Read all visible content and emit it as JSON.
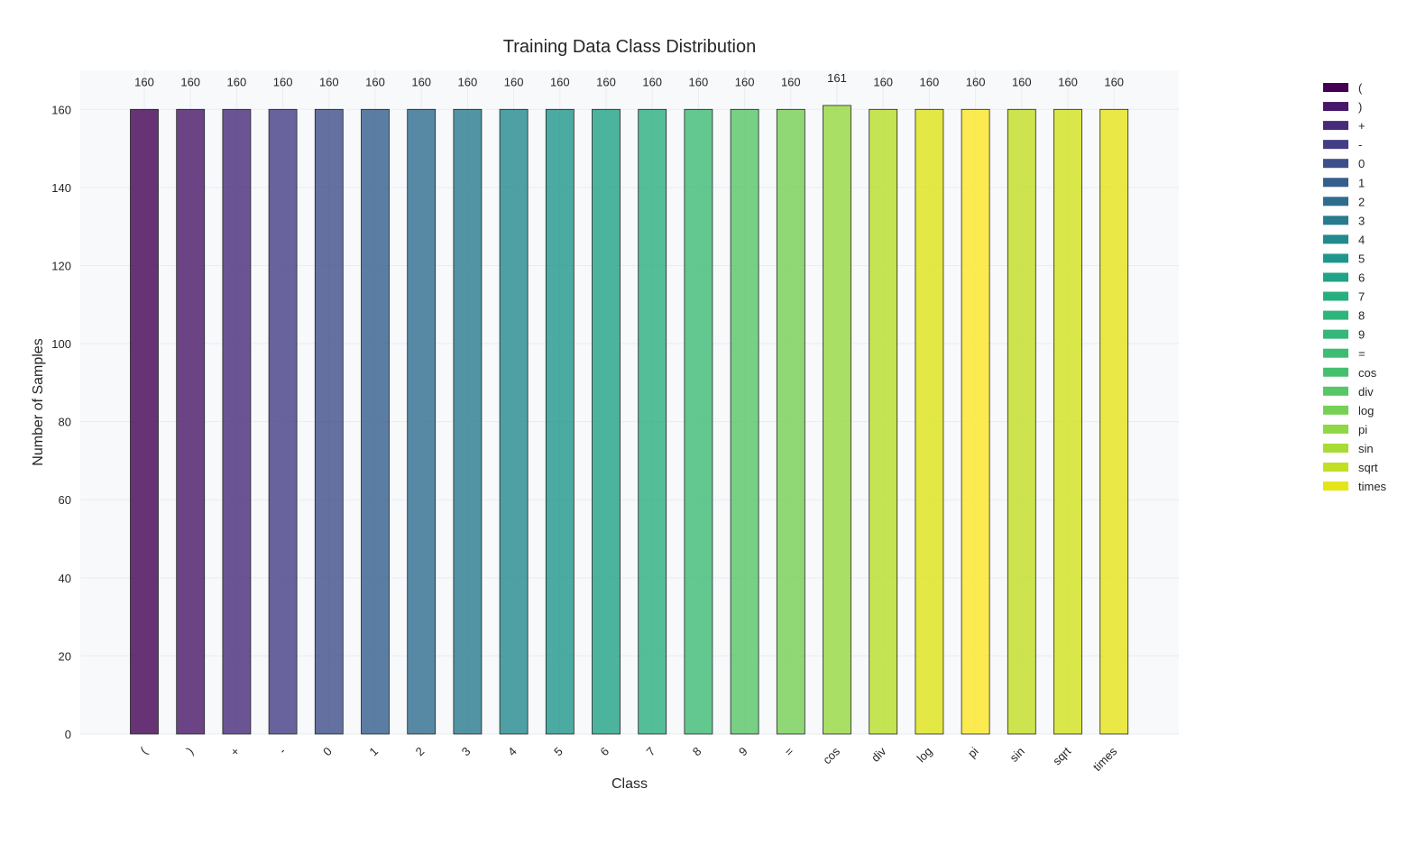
{
  "chart_data": {
    "type": "bar",
    "title": "Training Data Class Distribution",
    "xlabel": "Class",
    "ylabel": "Number of Samples",
    "categories": [
      "(",
      ")",
      "+",
      "-",
      "0",
      "1",
      "2",
      "3",
      "4",
      "5",
      "6",
      "7",
      "8",
      "9",
      "=",
      "cos",
      "div",
      "log",
      "pi",
      "sin",
      "sqrt",
      "times"
    ],
    "values": [
      160,
      160,
      160,
      160,
      160,
      160,
      160,
      160,
      160,
      160,
      160,
      160,
      160,
      160,
      160,
      161,
      160,
      160,
      160,
      160,
      160,
      160
    ],
    "value_labels": [
      "160",
      "160",
      "160",
      "160",
      "160",
      "160",
      "160",
      "160",
      "160",
      "160",
      "160",
      "160",
      "160",
      "160",
      "160",
      "161",
      "160",
      "160",
      "160",
      "160",
      "160",
      "160"
    ],
    "ylim": [
      0,
      170
    ],
    "yticks": [
      0,
      20,
      40,
      60,
      80,
      100,
      120,
      140,
      160
    ],
    "colors": [
      "#440154",
      "#481769",
      "#472a7a",
      "#433d84",
      "#3d4e8a",
      "#355e8d",
      "#2e6d8e",
      "#297b8e",
      "#23898e",
      "#1f968b",
      "#20a386",
      "#29af7f",
      "#3dbc74",
      "#56c667",
      "#75d054",
      "#95d840",
      "#b8de29",
      "#dde318",
      "#fde725",
      "#c2df23",
      "#d2e21b",
      "#e5e419"
    ],
    "legend_colors": [
      "#440154",
      "#481769",
      "#472a7a",
      "#433d84",
      "#3d4e8a",
      "#355e8d",
      "#2e6d8e",
      "#297b8e",
      "#23898e",
      "#1f968b",
      "#20a386",
      "#29af7f",
      "#2fb47c",
      "#35b779",
      "#3dbc74",
      "#46c06f",
      "#56c667",
      "#75d054",
      "#8fd744",
      "#a8db34",
      "#c2df23",
      "#e5e419"
    ],
    "bar_opacity": 0.8,
    "grid": true,
    "legend_position": "outside-right",
    "plot_background": "#f7f9fb"
  }
}
